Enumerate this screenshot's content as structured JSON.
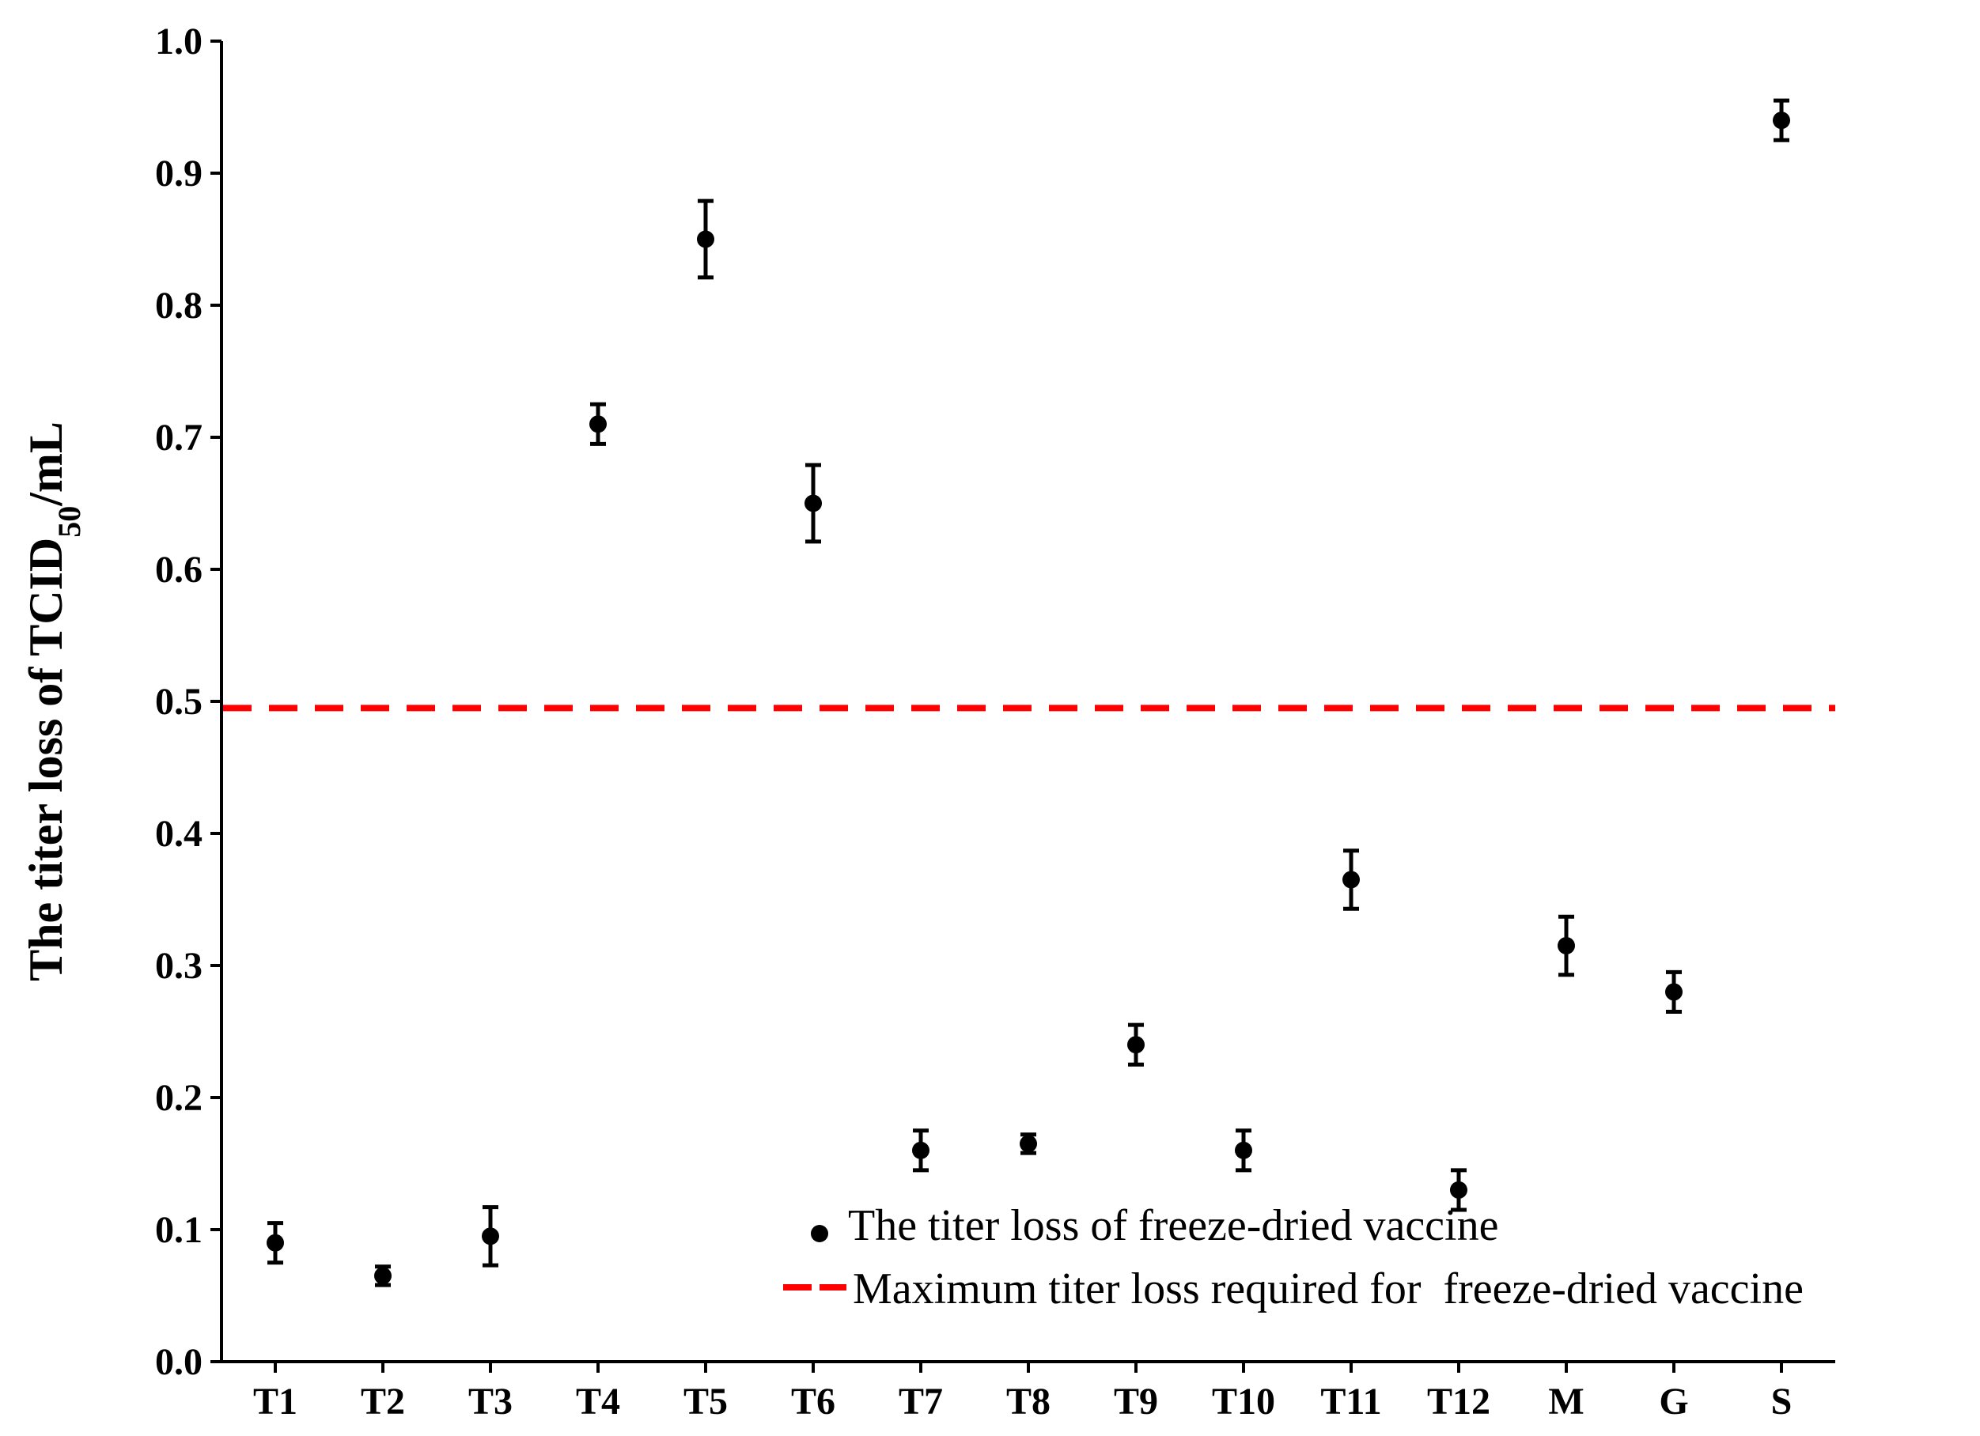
{
  "chart_data": {
    "type": "scatter",
    "categories": [
      "T1",
      "T2",
      "T3",
      "T4",
      "T5",
      "T6",
      "T7",
      "T8",
      "T9",
      "T10",
      "T11",
      "T12",
      "M",
      "G",
      "S"
    ],
    "series": [
      {
        "name": "The titer loss of freeze-dried vaccine",
        "values": [
          0.09,
          0.065,
          0.095,
          0.71,
          0.85,
          0.65,
          0.16,
          0.165,
          0.24,
          0.16,
          0.365,
          0.13,
          0.315,
          0.28,
          0.94
        ],
        "errors": [
          0.015,
          0.007,
          0.022,
          0.015,
          0.029,
          0.029,
          0.015,
          0.007,
          0.015,
          0.015,
          0.022,
          0.015,
          0.022,
          0.015,
          0.015
        ],
        "color": "#000000"
      }
    ],
    "reference_line": {
      "name": "Maximum titer loss required for  freeze-dried vaccine",
      "value": 0.495,
      "color": "#ff0000",
      "style": "dashed"
    },
    "ylabel_main": "The titer loss of TCID",
    "ylabel_sub": "50",
    "ylabel_tail": "/mL",
    "ylim": [
      0.0,
      1.0
    ],
    "yticks": [
      "0.0",
      "0.1",
      "0.2",
      "0.3",
      "0.4",
      "0.5",
      "0.6",
      "0.7",
      "0.8",
      "0.9",
      "1.0"
    ],
    "legend_position": "bottom-right",
    "grid": false
  }
}
